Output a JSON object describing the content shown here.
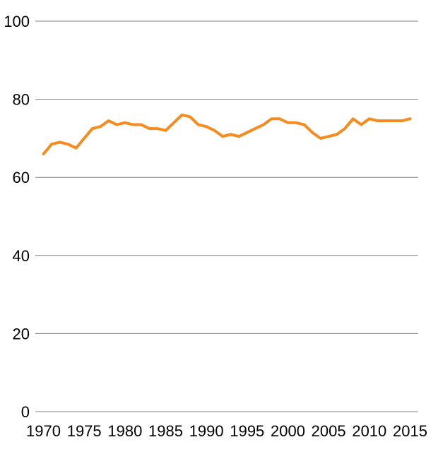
{
  "chart_data": {
    "type": "line",
    "title": "",
    "xlabel": "",
    "ylabel": "",
    "ylim": [
      0,
      100
    ],
    "yticks": [
      0,
      20,
      40,
      60,
      80,
      100
    ],
    "xticks": [
      1970,
      1975,
      1980,
      1985,
      1990,
      1995,
      2000,
      2005,
      2010,
      2015
    ],
    "x": [
      1970,
      1971,
      1972,
      1973,
      1974,
      1975,
      1976,
      1977,
      1978,
      1979,
      1980,
      1981,
      1982,
      1983,
      1984,
      1985,
      1986,
      1987,
      1988,
      1989,
      1990,
      1991,
      1992,
      1993,
      1994,
      1995,
      1996,
      1997,
      1998,
      1999,
      2000,
      2001,
      2002,
      2003,
      2004,
      2005,
      2006,
      2007,
      2008,
      2009,
      2010,
      2011,
      2012,
      2013,
      2014,
      2015
    ],
    "series": [
      {
        "name": "main",
        "color": "#F68B1F",
        "values": [
          66,
          68.5,
          69,
          68.5,
          67.5,
          70,
          72.5,
          73,
          74.5,
          73.5,
          74,
          73.5,
          73.5,
          72.5,
          72.5,
          72,
          74,
          76,
          75.5,
          73.5,
          73,
          72,
          70.5,
          71,
          70.5,
          71.5,
          72.5,
          73.5,
          75,
          75,
          74,
          74,
          73.5,
          71.5,
          70,
          70.5,
          71,
          72.5,
          75,
          73.5,
          75,
          74.5,
          74.5,
          74.5,
          74.5,
          75
        ]
      }
    ],
    "grid": "horizontal",
    "legend": "none"
  },
  "style": {
    "line_color": "#F68B1F",
    "grid_color": "#808080",
    "text_color": "#000000",
    "background_color": "#ffffff"
  }
}
